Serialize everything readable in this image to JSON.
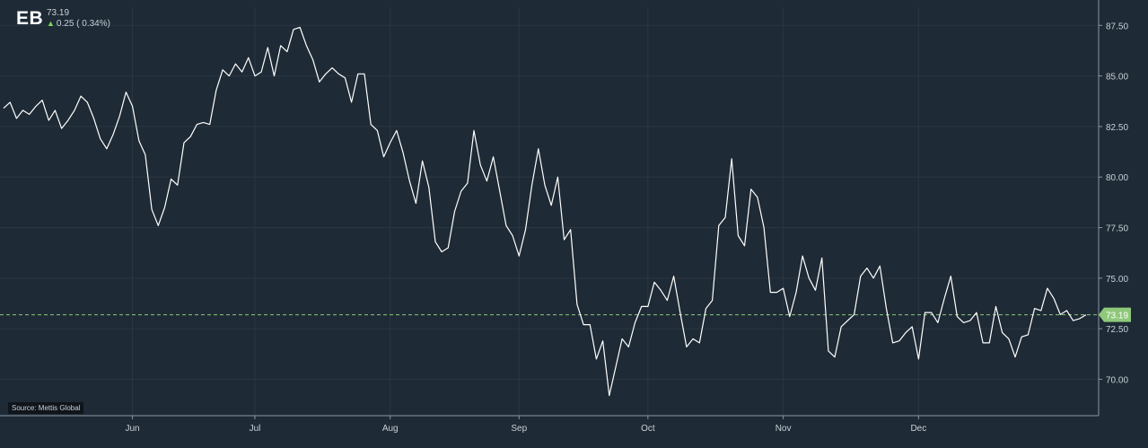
{
  "header": {
    "ticker": "EB",
    "last_price": "73.19",
    "change": "0.25 ( 0.34%)",
    "change_direction": "up"
  },
  "source": "Source: Mettis Global",
  "colors": {
    "background": "#1e2a35",
    "line": "#ffffff",
    "last_price_marker": "#8fc87a",
    "grid": "#2a3744"
  },
  "chart_data": {
    "type": "line",
    "ylim": [
      68.2,
      88.4
    ],
    "yticks": [
      "87.50",
      "85.00",
      "82.50",
      "80.00",
      "77.50",
      "75.00",
      "72.50",
      "70.00"
    ],
    "ytick_values": [
      87.5,
      85.0,
      82.5,
      80.0,
      77.5,
      75.0,
      72.5,
      70.0
    ],
    "xtick_labels": [
      "Jun",
      "Jul",
      "Aug",
      "Sep",
      "Oct",
      "Nov",
      "Dec"
    ],
    "xtick_index": [
      20,
      39,
      60,
      80,
      100,
      121,
      142
    ],
    "last_value": 73.19,
    "last_label": "73.19",
    "series": [
      {
        "values": [
          83.4,
          83.7,
          82.9,
          83.3,
          83.1,
          83.5,
          83.8,
          82.8,
          83.3,
          82.4,
          82.8,
          83.3,
          84.0,
          83.7,
          82.9,
          81.9,
          81.4,
          82.1,
          83.0,
          84.2,
          83.5,
          81.8,
          81.1,
          78.4,
          77.6,
          78.5,
          79.9,
          79.6,
          81.7,
          82.0,
          82.6,
          82.7,
          82.6,
          84.3,
          85.3,
          85.0,
          85.6,
          85.2,
          85.9,
          85.0,
          85.2,
          86.4,
          85.0,
          86.5,
          86.2,
          87.3,
          87.4,
          86.5,
          85.8,
          84.7,
          85.1,
          85.4,
          85.1,
          84.9,
          83.7,
          85.1,
          85.1,
          82.6,
          82.3,
          81.0,
          81.7,
          82.3,
          81.2,
          79.8,
          78.7,
          80.8,
          79.5,
          76.8,
          76.3,
          76.5,
          78.3,
          79.3,
          79.7,
          82.3,
          80.6,
          79.8,
          81.0,
          79.3,
          77.6,
          77.1,
          76.1,
          77.4,
          79.6,
          81.4,
          79.6,
          78.6,
          80.0,
          76.9,
          77.4,
          73.7,
          72.7,
          72.7,
          71.0,
          71.9,
          69.2,
          70.6,
          72.0,
          71.6,
          72.8,
          73.6,
          73.6,
          74.8,
          74.4,
          73.9,
          75.1,
          73.3,
          71.6,
          72.0,
          71.8,
          73.5,
          73.9,
          77.6,
          78.0,
          80.9,
          77.1,
          76.6,
          79.4,
          79.0,
          77.5,
          74.3,
          74.3,
          74.5,
          73.1,
          74.3,
          76.1,
          75.0,
          74.4,
          76.0,
          71.4,
          71.1,
          72.6,
          72.9,
          73.2,
          75.1,
          75.5,
          75.0,
          75.6,
          73.5,
          71.8,
          71.9,
          72.3,
          72.6,
          71.0,
          73.3,
          73.3,
          72.8,
          74.0,
          75.1,
          73.1,
          72.8,
          72.9,
          73.3,
          71.8,
          71.8,
          73.6,
          72.3,
          72.0,
          71.1,
          72.1,
          72.2,
          73.5,
          73.4,
          74.5,
          74.0,
          73.2,
          73.4,
          72.9,
          73.0,
          73.19
        ]
      }
    ]
  }
}
